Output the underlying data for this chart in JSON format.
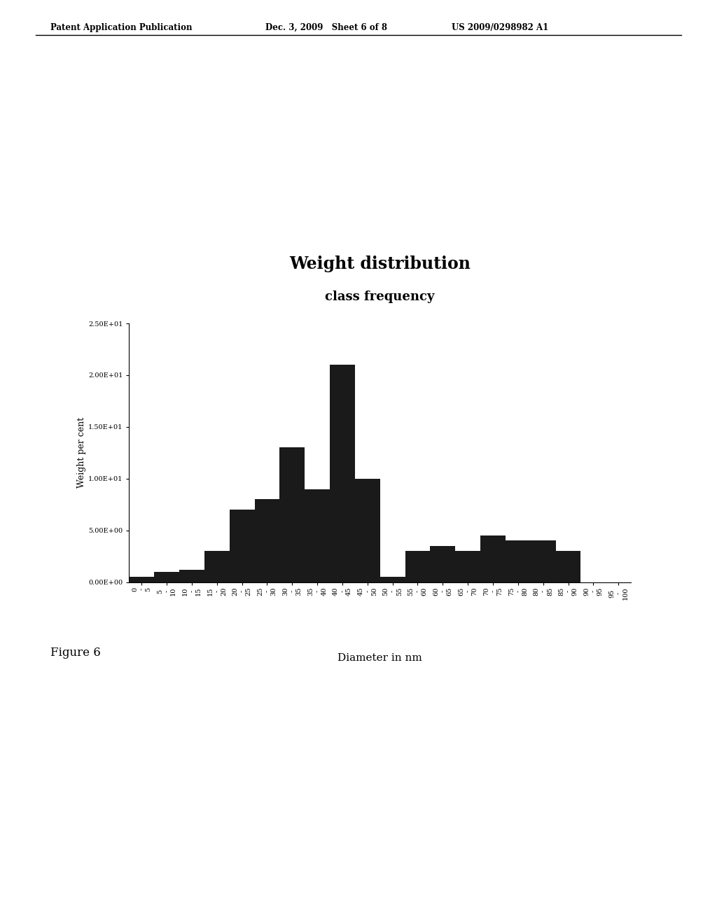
{
  "title": "Weight distribution",
  "subtitle": "class frequency",
  "ylabel": "Weight per cent",
  "xlabel": "Diameter in nm",
  "bar_color": "#1a1a1a",
  "background_color": "#ffffff",
  "ylim": [
    0,
    25
  ],
  "yticks": [
    0,
    5,
    10,
    15,
    20,
    25
  ],
  "ytick_labels": [
    "0.00E+00",
    "5.00E+00",
    "1.00E+01",
    "1.50E+01",
    "2.00E+01",
    "2.50E+01"
  ],
  "bin_edges": [
    0,
    5,
    10,
    15,
    20,
    25,
    30,
    35,
    40,
    45,
    50,
    55,
    60,
    65,
    70,
    75,
    80,
    85,
    90,
    95,
    100
  ],
  "bin_labels": [
    "0\n-\n5",
    "5\n-\n10",
    "10\n-\n15",
    "15\n-\n20",
    "20\n-\n25",
    "25\n-\n30",
    "30\n-\n35",
    "35\n-\n40",
    "40\n-\n45",
    "45\n-\n50",
    "50\n-\n55",
    "55\n-\n60",
    "60\n-\n65",
    "65\n-\n70",
    "70\n-\n75",
    "75\n-\n80",
    "80\n-\n85",
    "85\n-\n90",
    "90\n-\n95",
    "95\n-\n100"
  ],
  "values": [
    0.5,
    1.0,
    1.2,
    3.0,
    7.0,
    8.0,
    13.0,
    9.0,
    21.0,
    10.0,
    0.5,
    3.0,
    3.5,
    3.0,
    4.5,
    4.0,
    4.0,
    3.0,
    0.0,
    0.0
  ],
  "header_left": "Patent Application Publication",
  "header_mid": "Dec. 3, 2009   Sheet 6 of 8",
  "header_right": "US 2009/0298982 A1",
  "figure_label": "Figure 6",
  "title_fontsize": 17,
  "subtitle_fontsize": 13,
  "tick_fontsize": 7,
  "xlabel_fontsize": 11,
  "ylabel_fontsize": 9,
  "header_fontsize": 8.5,
  "figure_label_fontsize": 12
}
